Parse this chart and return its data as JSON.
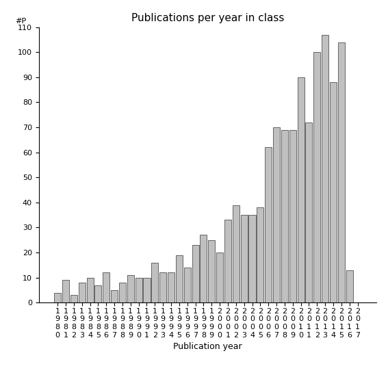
{
  "title": "Publications per year in class",
  "xlabel": "Publication year",
  "ylabel": "#P",
  "years": [
    1980,
    1981,
    1982,
    1983,
    1984,
    1985,
    1986,
    1987,
    1988,
    1989,
    1990,
    1991,
    1992,
    1993,
    1994,
    1995,
    1996,
    1997,
    1998,
    1999,
    2000,
    2001,
    2002,
    2003,
    2004,
    2005,
    2006,
    2007,
    2008,
    2009,
    2010,
    2011,
    2012,
    2013,
    2014,
    2015,
    2016,
    2017
  ],
  "values": [
    4,
    9,
    3,
    8,
    10,
    7,
    12,
    5,
    8,
    11,
    10,
    10,
    16,
    12,
    12,
    19,
    14,
    23,
    27,
    25,
    20,
    33,
    39,
    35,
    35,
    38,
    62,
    70,
    69,
    69,
    90,
    72,
    100,
    107,
    88,
    104,
    13,
    0
  ],
  "bar_color": "#c0c0c0",
  "bar_edgecolor": "#505050",
  "ylim": [
    0,
    110
  ],
  "yticks": [
    0,
    10,
    20,
    30,
    40,
    50,
    60,
    70,
    80,
    90,
    100,
    110
  ],
  "background_color": "#ffffff",
  "title_fontsize": 11,
  "label_fontsize": 9,
  "tick_fontsize": 8
}
